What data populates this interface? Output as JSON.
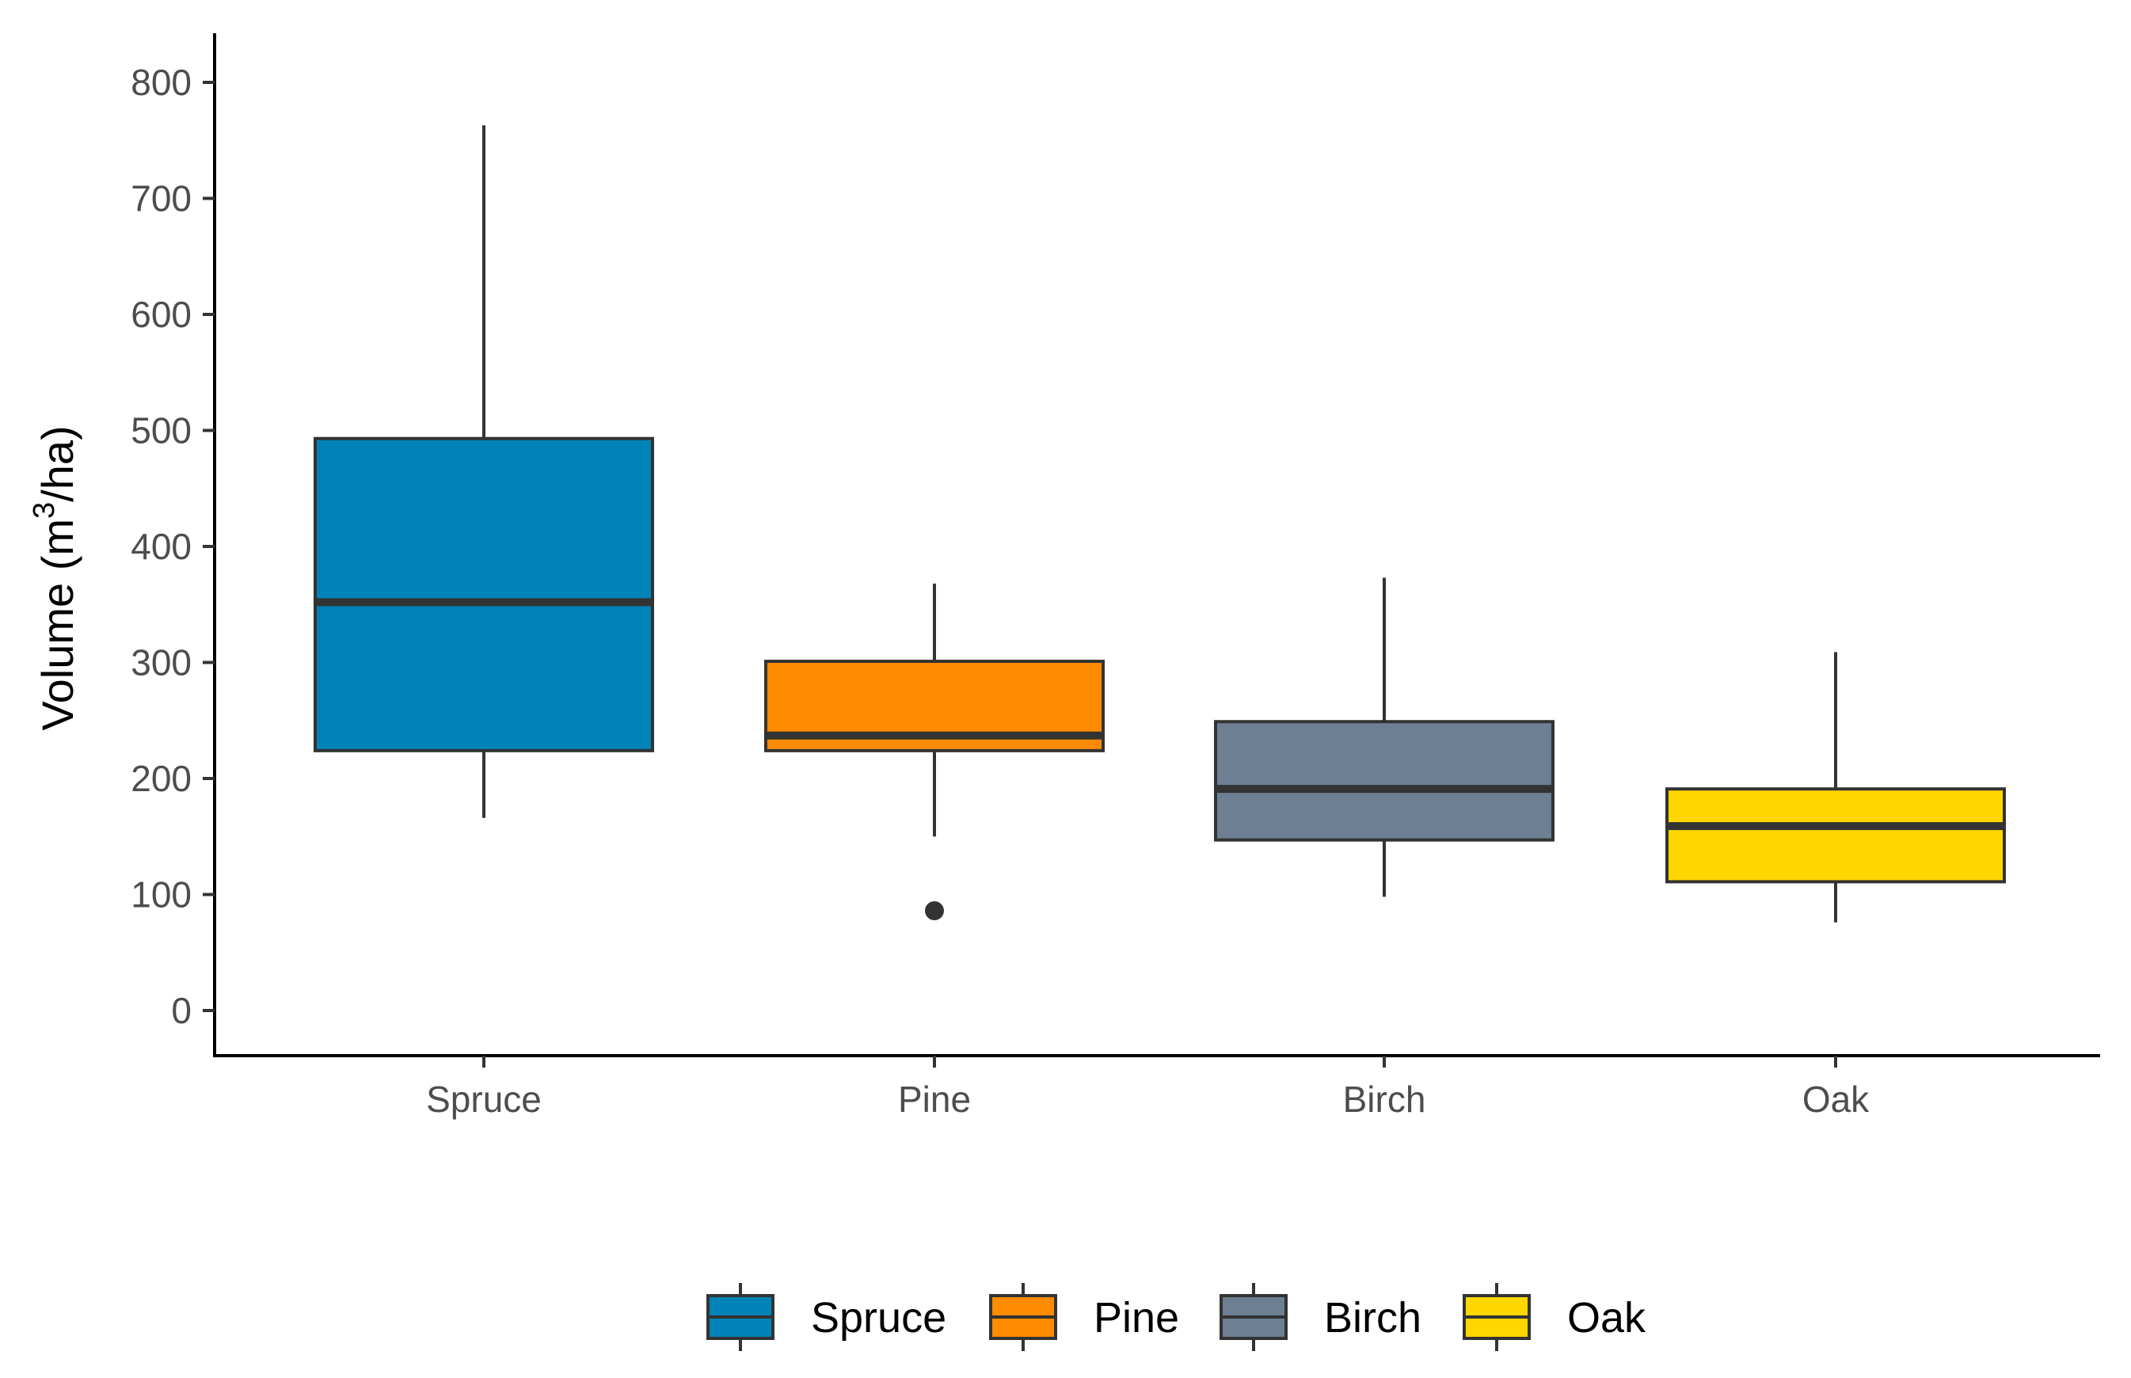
{
  "chart_data": {
    "type": "boxplot",
    "title": "",
    "xlabel": "",
    "ylabel": {
      "main": "Volume (m",
      "superscript": "3",
      "suffix": "/ha)"
    },
    "ylim": [
      -40,
      840
    ],
    "y_ticks": [
      0,
      100,
      200,
      300,
      400,
      500,
      600,
      700,
      800
    ],
    "y_tick_labels": [
      "0",
      "100",
      "200",
      "300",
      "400",
      "500",
      "600",
      "700",
      "800"
    ],
    "categories": [
      "Spruce",
      "Pine",
      "Birch",
      "Oak"
    ],
    "boxes": [
      {
        "name": "Spruce",
        "whisker_low": 166,
        "q1": 224,
        "median": 352,
        "q3": 493,
        "whisker_high": 763,
        "outliers": [],
        "color": "#0084B8"
      },
      {
        "name": "Pine",
        "whisker_low": 150,
        "q1": 224,
        "median": 237,
        "q3": 301,
        "whisker_high": 368,
        "outliers": [
          86
        ],
        "color": "#FF8C00"
      },
      {
        "name": "Birch",
        "whisker_low": 98,
        "q1": 147,
        "median": 191,
        "q3": 249,
        "whisker_high": 373,
        "outliers": [],
        "color": "#6C7F93"
      },
      {
        "name": "Oak",
        "whisker_low": 76,
        "q1": 111,
        "median": 159,
        "q3": 191,
        "whisker_high": 309,
        "outliers": [],
        "color": "#FFD700"
      }
    ],
    "legend": {
      "position": "bottom",
      "entries": [
        "Spruce",
        "Pine",
        "Birch",
        "Oak"
      ]
    },
    "grid": false,
    "line_color": "#333333"
  }
}
